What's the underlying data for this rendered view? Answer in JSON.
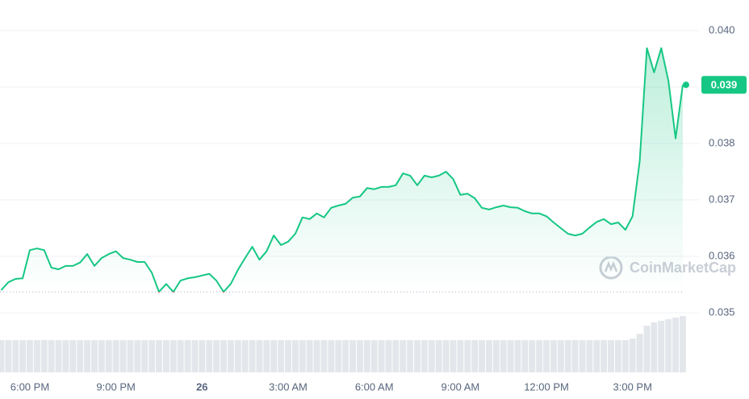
{
  "chart_data": {
    "type": "line",
    "watermark": "CoinMarketCap",
    "categories": [
      null,
      null,
      null,
      null,
      "6:00 PM",
      null,
      null,
      null,
      null,
      null,
      null,
      null,
      null,
      null,
      null,
      null,
      "9:00 PM",
      null,
      null,
      null,
      null,
      null,
      null,
      null,
      null,
      null,
      null,
      null,
      "26",
      null,
      null,
      null,
      null,
      null,
      null,
      null,
      null,
      null,
      null,
      null,
      "3:00 AM",
      null,
      null,
      null,
      null,
      null,
      null,
      null,
      null,
      null,
      null,
      null,
      "6:00 AM",
      null,
      null,
      null,
      null,
      null,
      null,
      null,
      null,
      null,
      null,
      null,
      "9:00 AM",
      null,
      null,
      null,
      null,
      null,
      null,
      null,
      null,
      null,
      null,
      null,
      "12:00 PM",
      null,
      null,
      null,
      null,
      null,
      null,
      null,
      null,
      null,
      null,
      null,
      "3:00 PM",
      null,
      null,
      null,
      null,
      null,
      null,
      null
    ],
    "series": [
      {
        "color": "#16c784",
        "values": [
          0.0354,
          0.03554,
          0.0356,
          0.03561,
          0.03611,
          0.03614,
          0.03611,
          0.0358,
          0.03577,
          0.03583,
          0.03583,
          0.03589,
          0.03604,
          0.03583,
          0.03597,
          0.03604,
          0.03609,
          0.03597,
          0.03594,
          0.0359,
          0.0359,
          0.03571,
          0.03537,
          0.03551,
          0.03537,
          0.03557,
          0.03561,
          0.03563,
          0.03566,
          0.03569,
          0.03557,
          0.03537,
          0.03551,
          0.03576,
          0.03597,
          0.03617,
          0.03594,
          0.03609,
          0.03637,
          0.0362,
          0.03626,
          0.0364,
          0.03669,
          0.03666,
          0.03676,
          0.03669,
          0.03686,
          0.0369,
          0.03693,
          0.03704,
          0.03706,
          0.03721,
          0.03719,
          0.03723,
          0.03723,
          0.03726,
          0.03747,
          0.03743,
          0.03726,
          0.03743,
          0.0374,
          0.03743,
          0.0375,
          0.03737,
          0.03709,
          0.03711,
          0.03703,
          0.03686,
          0.03683,
          0.03687,
          0.0369,
          0.03687,
          0.03686,
          0.0368,
          0.03676,
          0.03676,
          0.03671,
          0.0366,
          0.0365,
          0.0364,
          0.03637,
          0.0364,
          0.03651,
          0.03661,
          0.03666,
          0.03657,
          0.0366,
          0.03647,
          0.03671,
          0.03769,
          0.03969,
          0.03926,
          0.03969,
          0.03911,
          0.03809,
          0.03904
        ]
      }
    ],
    "below_color": "#ea3943",
    "reference_line": 0.03537,
    "current_price": {
      "value": 0.03904,
      "label": "0.039"
    },
    "volume": [
      40,
      40,
      40,
      40,
      40,
      40,
      40,
      40,
      40,
      40,
      40,
      40,
      40,
      40,
      40,
      40,
      40,
      40,
      40,
      40,
      40,
      40,
      40,
      40,
      40,
      40,
      40,
      40,
      40,
      40,
      40,
      40,
      40,
      40,
      40,
      40,
      40,
      40,
      40,
      40,
      40,
      40,
      40,
      40,
      40,
      40,
      40,
      40,
      40,
      40,
      40,
      40,
      40,
      40,
      40,
      40,
      40,
      40,
      40,
      40,
      40,
      40,
      40,
      40,
      40,
      40,
      40,
      40,
      40,
      40,
      40,
      40,
      40,
      40,
      40,
      40,
      40,
      40,
      40,
      40,
      40,
      40,
      40,
      40,
      40,
      40,
      40,
      40,
      42,
      48,
      58,
      62,
      64,
      66,
      68,
      70
    ],
    "ylim": [
      0.0343,
      0.0405
    ],
    "yticks": [
      0.035,
      0.036,
      0.037,
      0.038,
      0.039,
      {
        "value": 0.04,
        "label": "0.040"
      }
    ],
    "grid": true
  }
}
